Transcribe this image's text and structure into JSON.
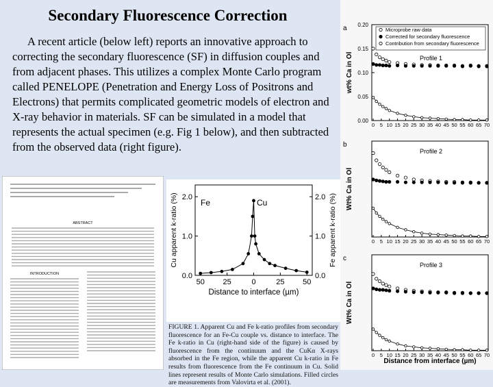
{
  "slide": {
    "title": "Secondary Fluorescence Correction",
    "body": "A recent article (below left) reports an innovative approach to correcting the secondary fluorescence (SF) in diffusion couples and from adjacent phases. This utilizes a complex Monte Carlo program called PENELOPE (Penetration and Energy Loss of Positrons and Electrons) that permits complicated geometric models of electron and X-ray behavior in materials. SF can be simulated in a model that represents the actual specimen (e.g. Fig 1 below), and then subtracted from the observed data (right figure).",
    "paper": {
      "sections": [
        "ABSTRACT",
        "INTRODUCTION"
      ]
    },
    "figure1": {
      "labels": [
        "Fe",
        "Cu"
      ],
      "ylabel": "Cu apparent k-ratio (%)",
      "y2label": "Fe apparent k-ratio (%)",
      "xlabel": "Distance to interface (µm)",
      "xlim": [
        -55,
        55
      ],
      "ylim": [
        0,
        2.3
      ],
      "yticks": [
        {
          "value": 2,
          "label": "2.0"
        },
        {
          "value": 1,
          "label": "1.0"
        },
        {
          "value": 0,
          "label": "0.0"
        }
      ],
      "y2ticks": [
        {
          "value": 2,
          "label": "2.0"
        },
        {
          "value": 1,
          "label": "1.0"
        },
        {
          "value": 0,
          "label": "0.0"
        }
      ],
      "xticks": [
        {
          "value": -50,
          "label": "50"
        },
        {
          "value": -25,
          "label": "25"
        },
        0,
        25,
        50
      ],
      "x": [
        -50,
        -40,
        -30,
        -20,
        -10,
        -5,
        -2,
        -1,
        0,
        1,
        2,
        5,
        10,
        15,
        20,
        30,
        40,
        50
      ],
      "values": [
        0.05,
        0.07,
        0.1,
        0.15,
        0.3,
        0.55,
        1.0,
        1.5,
        1.9,
        1.0,
        0.8,
        0.55,
        0.4,
        0.3,
        0.25,
        0.18,
        0.12,
        0.08
      ],
      "caption": "FIGURE 1. Apparent Cu and Fe k-ratio profiles from secondary fluorescence for an Fe-Cu couple vs. distance to interface. The Fe k-ratio in Cu (right-hand side of the figure) is caused by fluorescence from the continuum and the CuKα X-rays absorbed in the Fe region, while the apparent Cu k-ratio in Fe results from fluorescence from the Fe continuum in Cu. Solid lines represent results of Monte Carlo simulations. Filled circles are measurements from Valovirta et al. (2001)."
    },
    "figure2": {
      "xlabel": "Distance from interface (µm)",
      "x": [
        0,
        2,
        4,
        6,
        8,
        10,
        15,
        20,
        25,
        30,
        35,
        40,
        45,
        50,
        55,
        60,
        65,
        70
      ],
      "xlim": [
        0,
        70
      ],
      "xticks": [
        0,
        5,
        10,
        15,
        20,
        25,
        30,
        35,
        40,
        45,
        50,
        55,
        60,
        65,
        70
      ],
      "panels": [
        {
          "letter": "a",
          "label": "Profile 1",
          "ylabel": "wt% Ca in Ol",
          "ylim": [
            0,
            0.2
          ],
          "yticks": [
            {
              "value": 0.2,
              "label": "0.20"
            },
            {
              "value": 0.15,
              "label": "0.15"
            },
            {
              "value": 0.1,
              "label": "0.10"
            },
            {
              "value": 0.05,
              "label": "0.05"
            },
            {
              "value": 0,
              "label": "0.00"
            }
          ],
          "series": [
            {
              "name": "Microprobe raw data",
              "marker": "open",
              "values": [
                0.15,
                0.138,
                0.132,
                0.128,
                0.125,
                0.122,
                0.12,
                0.118,
                0.117,
                0.116,
                0.116,
                0.115,
                0.115,
                0.115,
                0.114,
                0.115,
                0.114,
                0.114
              ]
            },
            {
              "name": "Corrected for secondary fluorescence",
              "marker": "filled",
              "values": [
                0.118,
                0.116,
                0.116,
                0.115,
                0.115,
                0.114,
                0.115,
                0.114,
                0.114,
                0.114,
                0.114,
                0.114,
                0.114,
                0.114,
                0.113,
                0.114,
                0.113,
                0.113
              ]
            },
            {
              "name": "Contribution from secondary fluorescence",
              "marker": "line",
              "values": [
                0.048,
                0.04,
                0.034,
                0.029,
                0.025,
                0.021,
                0.015,
                0.011,
                0.008,
                0.006,
                0.005,
                0.004,
                0.003,
                0.002,
                0.002,
                0.001,
                0.001,
                0.001
              ]
            }
          ]
        },
        {
          "letter": "b",
          "label": "Profile 2",
          "ylabel": "Wt% Ca in Ol",
          "ylim": [
            0,
            0.2
          ],
          "series": [
            {
              "marker": "open",
              "values": [
                0.175,
                0.16,
                0.152,
                0.145,
                0.14,
                0.135,
                0.128,
                0.124,
                0.12,
                0.118,
                0.117,
                0.116,
                0.115,
                0.115,
                0.114,
                0.114,
                0.113,
                0.113
              ]
            },
            {
              "marker": "filled",
              "values": [
                0.12,
                0.118,
                0.117,
                0.116,
                0.115,
                0.115,
                0.115,
                0.114,
                0.114,
                0.114,
                0.114,
                0.114,
                0.113,
                0.113,
                0.113,
                0.113,
                0.113,
                0.113
              ]
            },
            {
              "marker": "line",
              "values": [
                0.06,
                0.05,
                0.043,
                0.037,
                0.032,
                0.028,
                0.02,
                0.015,
                0.011,
                0.008,
                0.006,
                0.005,
                0.004,
                0.003,
                0.002,
                0.002,
                0.001,
                0.001
              ]
            }
          ]
        },
        {
          "letter": "c",
          "label": "Profile 3",
          "ylabel": "Wt% Ca in Ol",
          "ylim": [
            0,
            0.2
          ],
          "series": [
            {
              "marker": "open",
              "values": [
                0.16,
                0.15,
                0.145,
                0.14,
                0.137,
                0.134,
                0.13,
                0.127,
                0.125,
                0.124,
                0.123,
                0.122,
                0.122,
                0.121,
                0.121,
                0.12,
                0.12,
                0.12
              ]
            },
            {
              "marker": "filled",
              "values": [
                0.13,
                0.128,
                0.127,
                0.127,
                0.126,
                0.125,
                0.124,
                0.123,
                0.122,
                0.122,
                0.121,
                0.121,
                0.121,
                0.12,
                0.12,
                0.12,
                0.12,
                0.12
              ]
            },
            {
              "marker": "line",
              "values": [
                0.045,
                0.038,
                0.032,
                0.027,
                0.023,
                0.02,
                0.014,
                0.01,
                0.008,
                0.006,
                0.005,
                0.004,
                0.003,
                0.002,
                0.002,
                0.001,
                0.001,
                0.001
              ]
            }
          ]
        }
      ]
    }
  }
}
